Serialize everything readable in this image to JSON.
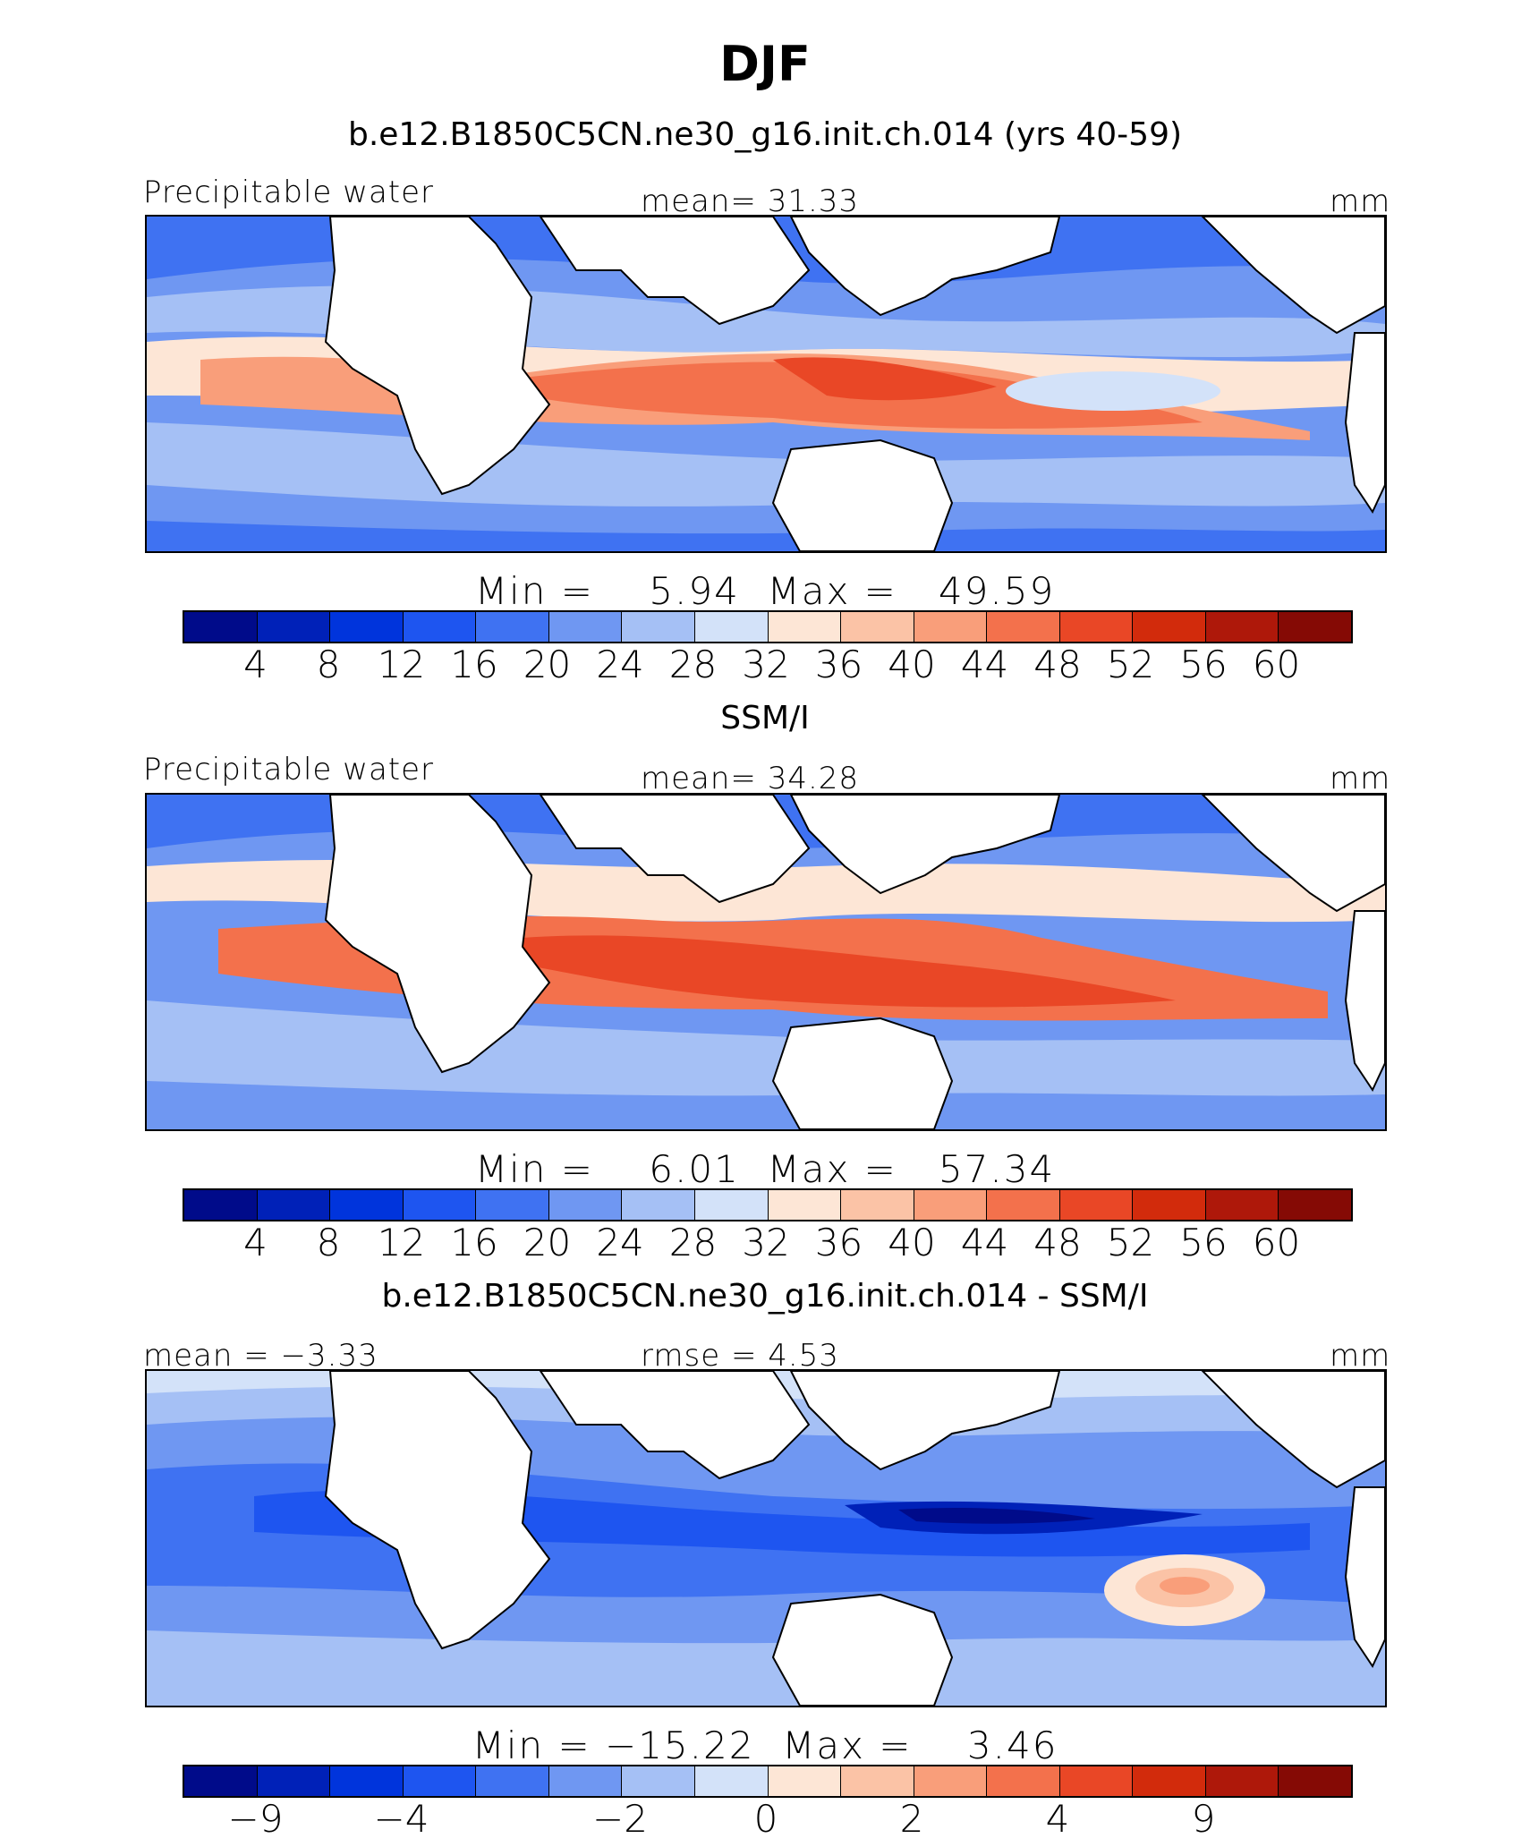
{
  "title": "DJF",
  "panels": [
    {
      "subtitle": "b.e12.B1850C5CN.ne30_g16.init.ch.014 (yrs 40-59)",
      "left_label": "Precipitable water",
      "center_label": "mean=  31.33",
      "right_label": "mm",
      "minmax": "Min =    5.94  Max =   49.59",
      "colorbar_ticks": [
        "4",
        "8",
        "12",
        "16",
        "20",
        "24",
        "28",
        "32",
        "36",
        "40",
        "44",
        "48",
        "52",
        "56",
        "60"
      ]
    },
    {
      "subtitle": "SSM/I",
      "left_label": "Precipitable water",
      "center_label": "mean=  34.28",
      "right_label": "mm",
      "minmax": "Min =    6.01  Max =   57.34",
      "colorbar_ticks": [
        "4",
        "8",
        "12",
        "16",
        "20",
        "24",
        "28",
        "32",
        "36",
        "40",
        "44",
        "48",
        "52",
        "56",
        "60"
      ]
    },
    {
      "subtitle": "b.e12.B1850C5CN.ne30_g16.init.ch.014 - SSM/I",
      "left_label": "mean =  −3.33",
      "center_label": "rmse =    4.53",
      "right_label": "mm",
      "minmax": "Min = −15.22  Max =    3.46",
      "colorbar_ticks": [
        "−9",
        "−4",
        "−2",
        "0",
        "2",
        "4",
        "9"
      ]
    }
  ],
  "colorbar_colors": [
    "#000b8a",
    "#0021b8",
    "#0034dc",
    "#1e55f0",
    "#3f72f2",
    "#6f97f2",
    "#a5c0f5",
    "#d3e2f9",
    "#fde6d6",
    "#fbc3a6",
    "#f99e7a",
    "#f3714c",
    "#e94726",
    "#d22b0c",
    "#ae180a",
    "#850a05"
  ]
}
